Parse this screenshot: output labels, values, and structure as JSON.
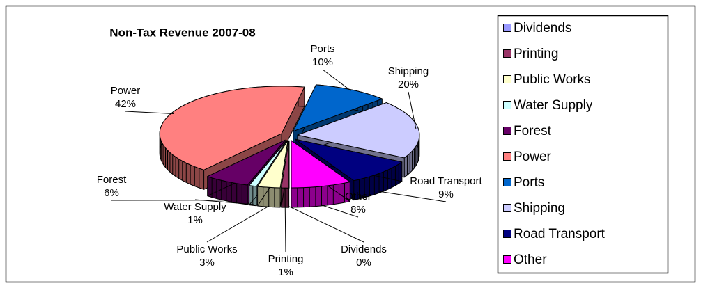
{
  "chart_data": {
    "type": "pie",
    "title": "Non-Tax Revenue 2007-08",
    "categories": [
      "Dividends",
      "Printing",
      "Public Works",
      "Water Supply",
      "Forest",
      "Power",
      "Ports",
      "Shipping",
      "Road Transport",
      "Other"
    ],
    "values": [
      0,
      1,
      3,
      1,
      6,
      42,
      10,
      20,
      9,
      8
    ],
    "value_labels": [
      "0%",
      "1%",
      "3%",
      "1%",
      "6%",
      "42%",
      "10%",
      "20%",
      "9%",
      "8%"
    ],
    "colors": [
      "#9999ff",
      "#993366",
      "#ffffcc",
      "#ccffff",
      "#660066",
      "#ff8080",
      "#0066cc",
      "#ccccff",
      "#000080",
      "#ff00ff"
    ],
    "legend": "right"
  }
}
